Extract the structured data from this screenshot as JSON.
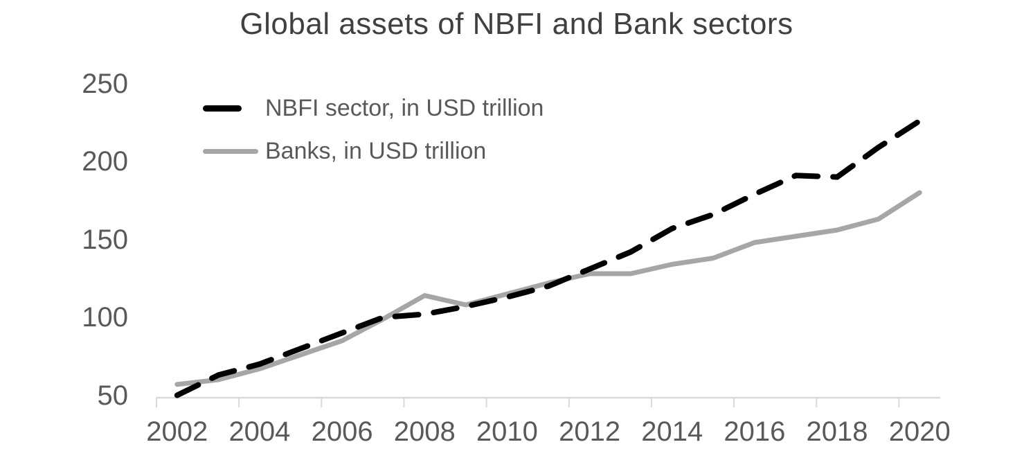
{
  "title": "Global assets of NBFI and Bank sectors",
  "colors": {
    "title_text": "#404040",
    "axis_label_text": "#595959",
    "axis_line": "#d9d9d9",
    "nbfi_line": "#000000",
    "banks_line": "#a6a6a6",
    "background": "#ffffff"
  },
  "chart_data": {
    "type": "line",
    "title": "Global assets of NBFI and Bank sectors",
    "xlabel": "",
    "ylabel": "",
    "x": [
      2002,
      2003,
      2004,
      2005,
      2006,
      2007,
      2008,
      2009,
      2010,
      2011,
      2012,
      2013,
      2014,
      2015,
      2016,
      2017,
      2018,
      2019,
      2020
    ],
    "series": [
      {
        "name": "NBFI sector, in USD trillion",
        "style": "dashed",
        "color": "#000000",
        "values": [
          50,
          63,
          70,
          80,
          90,
          100,
          102,
          107,
          113,
          120,
          131,
          142,
          157,
          166,
          179,
          191,
          190,
          209,
          226
        ]
      },
      {
        "name": "Banks, in USD trillion",
        "style": "solid",
        "color": "#a6a6a6",
        "values": [
          57,
          60,
          67,
          76,
          85,
          99,
          114,
          108,
          115,
          122,
          128,
          128,
          134,
          138,
          148,
          152,
          156,
          163,
          180
        ]
      }
    ],
    "xticks": [
      2002,
      2004,
      2006,
      2008,
      2010,
      2012,
      2014,
      2016,
      2018,
      2020
    ],
    "yticks": [
      250,
      200,
      150,
      100,
      50
    ],
    "ylim": [
      50,
      250
    ],
    "grid": false,
    "legend_position": "top-left-inside"
  }
}
